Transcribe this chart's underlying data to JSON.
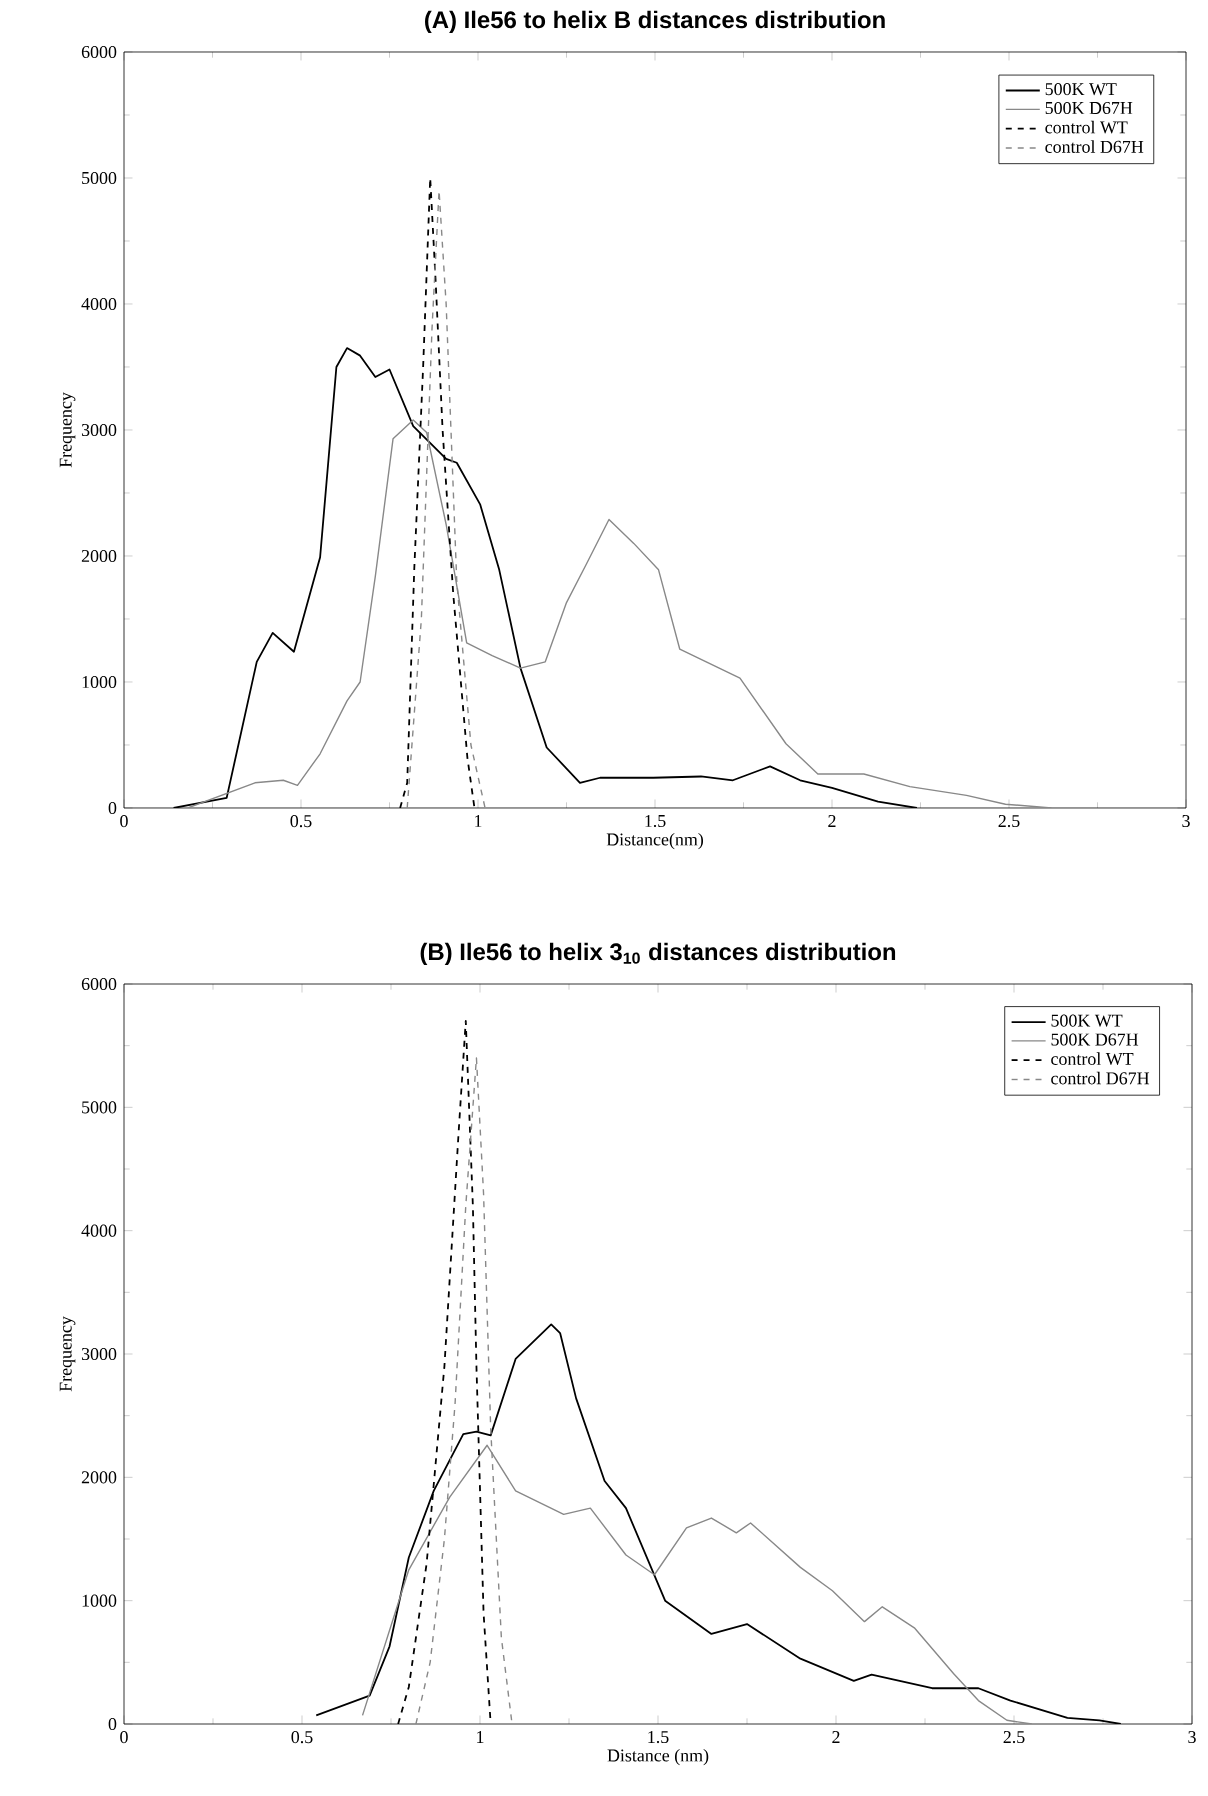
{
  "chart_data": [
    {
      "type": "line",
      "title": "(A) Ile56 to helix B distances distribution",
      "xlabel": "Distance(nm)",
      "ylabel": "Frequency",
      "xlim": [
        0,
        3
      ],
      "ylim": [
        0,
        6000
      ],
      "xticks": [
        0,
        0.5,
        1,
        1.5,
        2,
        2.5,
        3
      ],
      "yticks": [
        0,
        1000,
        2000,
        3000,
        4000,
        5000,
        6000
      ],
      "legend": "top right",
      "series": [
        {
          "name": "500K WT",
          "color": "#000000",
          "line_style": "solid",
          "x": [
            0.14,
            0.29,
            0.375,
            0.42,
            0.48,
            0.554,
            0.6,
            0.63,
            0.667,
            0.71,
            0.75,
            0.817,
            0.91,
            0.94,
            1.006,
            1.06,
            1.12,
            1.194,
            1.288,
            1.345,
            1.495,
            1.63,
            1.72,
            1.825,
            1.91,
            2.0,
            2.13,
            2.24
          ],
          "values": [
            0,
            80,
            1160,
            1390,
            1240,
            1990,
            3500,
            3650,
            3590,
            3420,
            3480,
            3030,
            2770,
            2740,
            2410,
            1890,
            1110,
            480,
            200,
            240,
            240,
            250,
            220,
            330,
            220,
            160,
            50,
            0
          ]
        },
        {
          "name": "500K D67H",
          "color": "#888888",
          "line_style": "solid",
          "x": [
            0.18,
            0.37,
            0.45,
            0.49,
            0.554,
            0.63,
            0.667,
            0.71,
            0.76,
            0.817,
            0.855,
            0.91,
            0.968,
            1.04,
            1.12,
            1.19,
            1.25,
            1.307,
            1.37,
            1.44,
            1.51,
            1.57,
            1.74,
            1.87,
            1.96,
            2.09,
            2.22,
            2.38,
            2.49,
            2.62
          ],
          "values": [
            0,
            200,
            220,
            180,
            430,
            850,
            1000,
            1840,
            2930,
            3080,
            2980,
            2250,
            1310,
            1210,
            1110,
            1160,
            1630,
            1940,
            2290,
            2100,
            1890,
            1260,
            1030,
            510,
            270,
            270,
            170,
            100,
            30,
            0
          ]
        },
        {
          "name": "control WT",
          "color": "#000000",
          "line_style": "dashed",
          "x": [
            0.78,
            0.8,
            0.82,
            0.845,
            0.865,
            0.88,
            0.9,
            0.93,
            0.97,
            0.99
          ],
          "values": [
            0,
            200,
            1900,
            3500,
            5000,
            4200,
            3000,
            1700,
            400,
            0
          ]
        },
        {
          "name": "control D67H",
          "color": "#888888",
          "line_style": "dashed",
          "x": [
            0.8,
            0.84,
            0.87,
            0.89,
            0.91,
            0.94,
            0.98,
            1.02
          ],
          "values": [
            0,
            1500,
            3800,
            4900,
            4000,
            1800,
            500,
            0
          ]
        }
      ]
    },
    {
      "type": "line",
      "title": "(B) Ile56 to helix 3$_{10}$ distances distribution",
      "xlabel": "Distance (nm)",
      "ylabel": "Frequency",
      "xlim": [
        0,
        3
      ],
      "ylim": [
        0,
        6000
      ],
      "xticks": [
        0,
        0.5,
        1,
        1.5,
        2,
        2.5,
        3
      ],
      "yticks": [
        0,
        1000,
        2000,
        3000,
        4000,
        5000,
        6000
      ],
      "legend": "top right",
      "series": [
        {
          "name": "500K WT",
          "color": "#000000",
          "line_style": "solid",
          "x": [
            0.54,
            0.69,
            0.746,
            0.8,
            0.87,
            0.953,
            0.99,
            1.03,
            1.1,
            1.2,
            1.225,
            1.27,
            1.35,
            1.41,
            1.52,
            1.65,
            1.75,
            1.9,
            2.05,
            2.1,
            2.27,
            2.4,
            2.49,
            2.65,
            2.74,
            2.8
          ],
          "values": [
            70,
            230,
            630,
            1350,
            1890,
            2350,
            2370,
            2340,
            2960,
            3240,
            3170,
            2640,
            1970,
            1750,
            1000,
            730,
            810,
            530,
            350,
            400,
            290,
            290,
            190,
            50,
            30,
            0
          ]
        },
        {
          "name": "500K D67H",
          "color": "#888888",
          "line_style": "solid",
          "x": [
            0.67,
            0.8,
            0.915,
            1.02,
            1.1,
            1.235,
            1.31,
            1.41,
            1.49,
            1.58,
            1.65,
            1.72,
            1.76,
            1.9,
            1.99,
            2.08,
            2.13,
            2.22,
            2.33,
            2.4,
            2.48,
            2.55
          ],
          "values": [
            70,
            1250,
            1840,
            2260,
            1890,
            1700,
            1750,
            1370,
            1210,
            1590,
            1670,
            1550,
            1630,
            1270,
            1080,
            830,
            950,
            780,
            410,
            190,
            30,
            0
          ]
        },
        {
          "name": "control WT",
          "color": "#000000",
          "line_style": "dashed",
          "x": [
            0.77,
            0.8,
            0.85,
            0.9,
            0.94,
            0.96,
            0.98,
            0.99,
            1.01,
            1.03
          ],
          "values": [
            0,
            300,
            1300,
            2900,
            4800,
            5700,
            4200,
            2900,
            900,
            0
          ]
        },
        {
          "name": "control D67H",
          "color": "#888888",
          "line_style": "dashed",
          "x": [
            0.82,
            0.86,
            0.9,
            0.93,
            0.96,
            0.99,
            1.01,
            1.03,
            1.06,
            1.09
          ],
          "values": [
            0,
            500,
            1500,
            2600,
            4200,
            5400,
            4300,
            2400,
            700,
            0
          ]
        }
      ]
    }
  ]
}
